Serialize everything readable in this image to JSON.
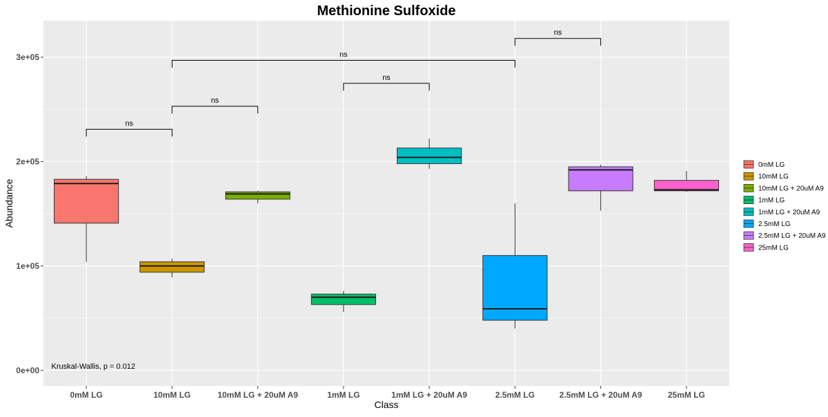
{
  "chart_data": {
    "type": "box",
    "title": "Methionine Sulfoxide",
    "xlabel": "Class",
    "ylabel": "Abundance",
    "ylim": [
      -15000,
      335000
    ],
    "yticks": [
      0,
      100000,
      200000,
      300000
    ],
    "ytick_labels": [
      "0e+00",
      "1e+05",
      "2e+05",
      "3e+05"
    ],
    "grid": true,
    "legend_position": "right",
    "categories": [
      "0mM LG",
      "10mM LG",
      "10mM LG + 20uM A9",
      "1mM LG",
      "1mM LG + 20uM A9",
      "2.5mM LG",
      "2.5mM LG + 20uM A9",
      "25mM LG"
    ],
    "series": [
      {
        "name": "0mM LG",
        "color": "#F8766D",
        "min": 104000,
        "q1": 141000,
        "median": 179000,
        "q3": 183000,
        "max": 186000
      },
      {
        "name": "10mM LG",
        "color": "#CD9600",
        "min": 89000,
        "q1": 94000,
        "median": 100000,
        "q3": 104000,
        "max": 107000
      },
      {
        "name": "10mM LG + 20uM A9",
        "color": "#7CAE00",
        "min": 160000,
        "q1": 164000,
        "median": 169000,
        "q3": 171000,
        "max": 172000
      },
      {
        "name": "1mM LG",
        "color": "#00BE67",
        "min": 56000,
        "q1": 63000,
        "median": 70000,
        "q3": 73000,
        "max": 76000
      },
      {
        "name": "1mM LG + 20uM A9",
        "color": "#00BFC4",
        "min": 193000,
        "q1": 198000,
        "median": 204000,
        "q3": 213000,
        "max": 222000
      },
      {
        "name": "2.5mM LG",
        "color": "#00A9FF",
        "min": 40000,
        "q1": 48000,
        "median": 59000,
        "q3": 110000,
        "max": 160000
      },
      {
        "name": "2.5mM LG + 20uM A9",
        "color": "#C77CFF",
        "min": 153000,
        "q1": 172000,
        "median": 192000,
        "q3": 195000,
        "max": 197000
      },
      {
        "name": "25mM LG",
        "color": "#FF61CC",
        "min": 171000,
        "q1": 172000,
        "median": 173000,
        "q3": 182000,
        "max": 191000
      }
    ],
    "comparisons": [
      {
        "from": 0,
        "to": 1,
        "y": 231000,
        "label": "ns"
      },
      {
        "from": 1,
        "to": 2,
        "y": 253000,
        "label": "ns"
      },
      {
        "from": 3,
        "to": 4,
        "y": 275000,
        "label": "ns"
      },
      {
        "from": 1,
        "to": 5,
        "y": 297000,
        "label": "ns"
      },
      {
        "from": 5,
        "to": 6,
        "y": 318000,
        "label": "ns"
      }
    ],
    "annotation": {
      "text": "Kruskal-Wallis, p = 0.012",
      "x": 0.8,
      "y": 1500
    }
  }
}
